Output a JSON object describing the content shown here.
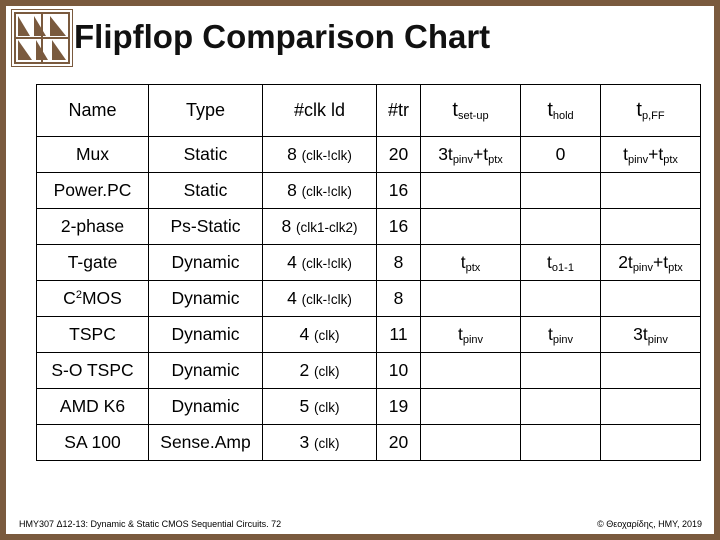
{
  "title": "Flipflop Comparison Chart",
  "logo": {
    "icon": "university-crest-icon",
    "color": "#7a5a3e"
  },
  "table": {
    "headers": {
      "name": "Name",
      "type": "Type",
      "clk": "#clk ld",
      "tr": "#tr",
      "setup_main": "t",
      "setup_sub": "set-up",
      "hold_main": "t",
      "hold_sub": "hold",
      "pff_main": "t",
      "pff_sub": "p,FF"
    },
    "rows": [
      {
        "name": "Mux",
        "type": "Static",
        "clk_num": "8",
        "clk_note": "(clk-!clk)",
        "tr": "20"
      },
      {
        "name": "Power.PC",
        "type": "Static",
        "clk_num": "8",
        "clk_note": "(clk-!clk)",
        "tr": "16"
      },
      {
        "name": "2-phase",
        "type": "Ps-Static",
        "clk_num": "8",
        "clk_note": "(clk1-clk2)",
        "tr": "16"
      },
      {
        "name": "T-gate",
        "type": "Dynamic",
        "clk_num": "4",
        "clk_note": "(clk-!clk)",
        "tr": "8"
      },
      {
        "name_pre": "C",
        "name_sup": "2",
        "name_post": "MOS",
        "type": "Dynamic",
        "clk_num": "4",
        "clk_note": "(clk-!clk)",
        "tr": "8"
      },
      {
        "name": "TSPC",
        "type": "Dynamic",
        "clk_num": "4",
        "clk_note": "(clk)",
        "tr": "11"
      },
      {
        "name": "S-O TSPC",
        "type": "Dynamic",
        "clk_num": "2",
        "clk_note": "(clk)",
        "tr": "10"
      },
      {
        "name": "AMD K6",
        "type": "Dynamic",
        "clk_num": "5",
        "clk_note": "(clk)",
        "tr": "19"
      },
      {
        "name": "SA 100",
        "type": "Sense.Amp",
        "clk_num": "3",
        "clk_note": "(clk)",
        "tr": "20"
      }
    ],
    "timing": {
      "mux": {
        "setup": {
          "a": "3t",
          "a_sub": "pinv",
          "b": "+t",
          "b_sub": "ptx"
        },
        "hold": "0",
        "pff": {
          "a": "t",
          "a_sub": "pinv",
          "b": "+t",
          "b_sub": "ptx"
        }
      },
      "tgate": {
        "setup": {
          "a": "t",
          "a_sub": "ptx"
        },
        "hold": {
          "a": "t",
          "a_sub": "o1-1"
        },
        "pff": {
          "a": "2t",
          "a_sub": "pinv",
          "b": "+t",
          "b_sub": "ptx"
        }
      },
      "tspc": {
        "setup": {
          "a": "t",
          "a_sub": "pinv"
        },
        "hold": {
          "a": "t",
          "a_sub": "pinv"
        },
        "pff": {
          "a": "3t",
          "a_sub": "pinv"
        }
      }
    }
  },
  "footer": {
    "left": "HMY307 Δ12-13: Dynamic & Static CMOS Sequential Circuits. 72",
    "right": "© Θεοχαρίδης, HMY, 2019"
  }
}
